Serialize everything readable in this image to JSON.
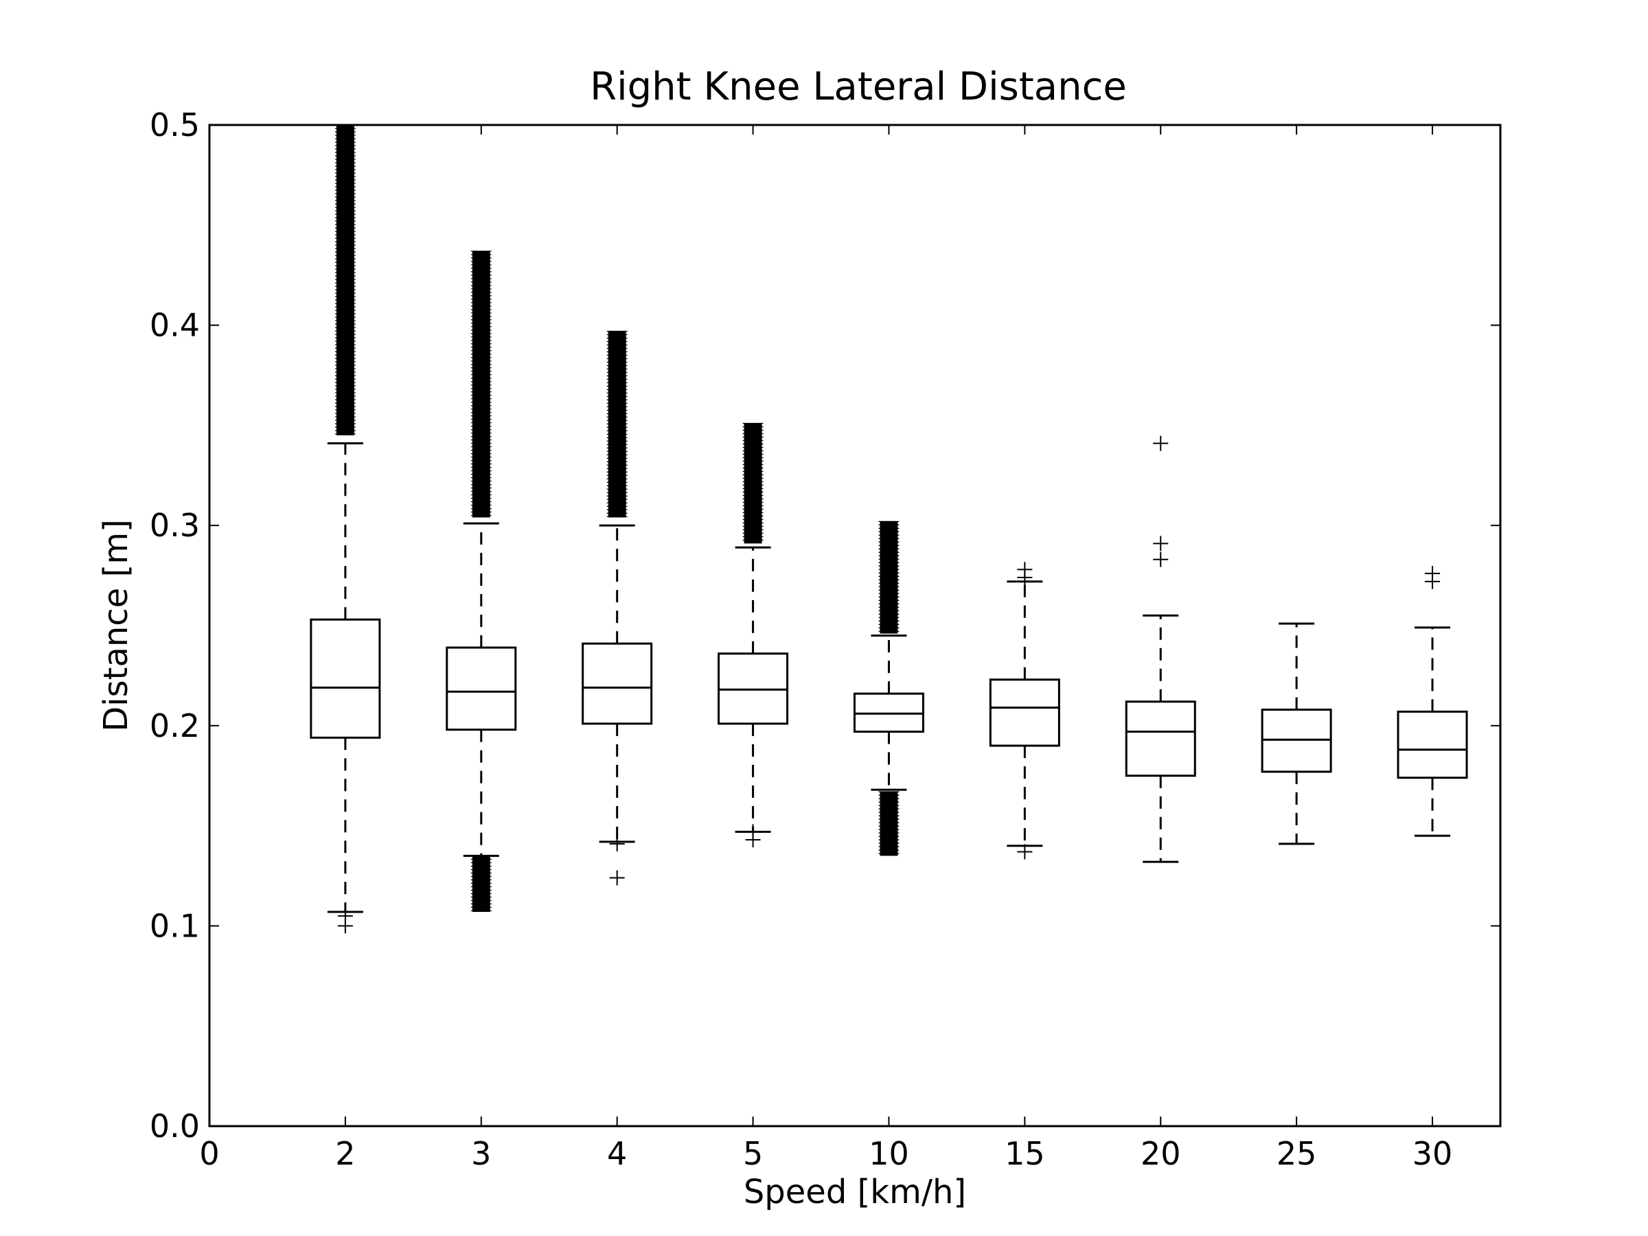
{
  "chart_data": {
    "type": "box",
    "title": "Right Knee Lateral Distance",
    "xlabel": "Speed [km/h]",
    "ylabel": "Distance [m]",
    "ylim": [
      0.0,
      0.5
    ],
    "y_ticks": [
      "0.0",
      "0.1",
      "0.2",
      "0.3",
      "0.4",
      "0.5"
    ],
    "x_ticks": [
      "0",
      "2",
      "3",
      "4",
      "5",
      "10",
      "15",
      "20",
      "25",
      "30"
    ],
    "grid": false,
    "categories": [
      "2",
      "3",
      "4",
      "5",
      "10",
      "15",
      "20",
      "25",
      "30"
    ],
    "boxes": [
      {
        "category": "2",
        "whisker_low": 0.107,
        "q1": 0.194,
        "median": 0.219,
        "q3": 0.253,
        "whisker_high": 0.341,
        "outliers_low": [
          0.1,
          0.105
        ],
        "outliers_high": [
          0.345,
          0.5
        ]
      },
      {
        "category": "3",
        "whisker_low": 0.135,
        "q1": 0.198,
        "median": 0.217,
        "q3": 0.239,
        "whisker_high": 0.301,
        "outliers_low": [
          0.107,
          0.135
        ],
        "outliers_high": [
          0.304,
          0.437
        ]
      },
      {
        "category": "4",
        "whisker_low": 0.142,
        "q1": 0.201,
        "median": 0.219,
        "q3": 0.241,
        "whisker_high": 0.3,
        "outliers_low": [
          0.124,
          0.141
        ],
        "outliers_high": [
          0.304,
          0.397
        ]
      },
      {
        "category": "5",
        "whisker_low": 0.147,
        "q1": 0.201,
        "median": 0.218,
        "q3": 0.236,
        "whisker_high": 0.289,
        "outliers_low": [
          0.143,
          0.147
        ],
        "outliers_high": [
          0.291,
          0.351
        ]
      },
      {
        "category": "10",
        "whisker_low": 0.168,
        "q1": 0.197,
        "median": 0.206,
        "q3": 0.216,
        "whisker_high": 0.245,
        "outliers_low": [
          0.135,
          0.167
        ],
        "outliers_high": [
          0.246,
          0.302
        ]
      },
      {
        "category": "15",
        "whisker_low": 0.14,
        "q1": 0.19,
        "median": 0.209,
        "q3": 0.223,
        "whisker_high": 0.272,
        "outliers_low": [
          0.137
        ],
        "outliers_high": [
          0.274,
          0.278
        ]
      },
      {
        "category": "20",
        "whisker_low": 0.132,
        "q1": 0.175,
        "median": 0.197,
        "q3": 0.212,
        "whisker_high": 0.255,
        "outliers_low": [],
        "outliers_high": [
          0.283,
          0.291,
          0.341
        ]
      },
      {
        "category": "25",
        "whisker_low": 0.141,
        "q1": 0.177,
        "median": 0.193,
        "q3": 0.208,
        "whisker_high": 0.251,
        "outliers_low": [],
        "outliers_high": []
      },
      {
        "category": "30",
        "whisker_low": 0.145,
        "q1": 0.174,
        "median": 0.188,
        "q3": 0.207,
        "whisker_high": 0.249,
        "outliers_low": [],
        "outliers_high": [
          0.272,
          0.276
        ]
      }
    ],
    "line_color": "#000000"
  }
}
